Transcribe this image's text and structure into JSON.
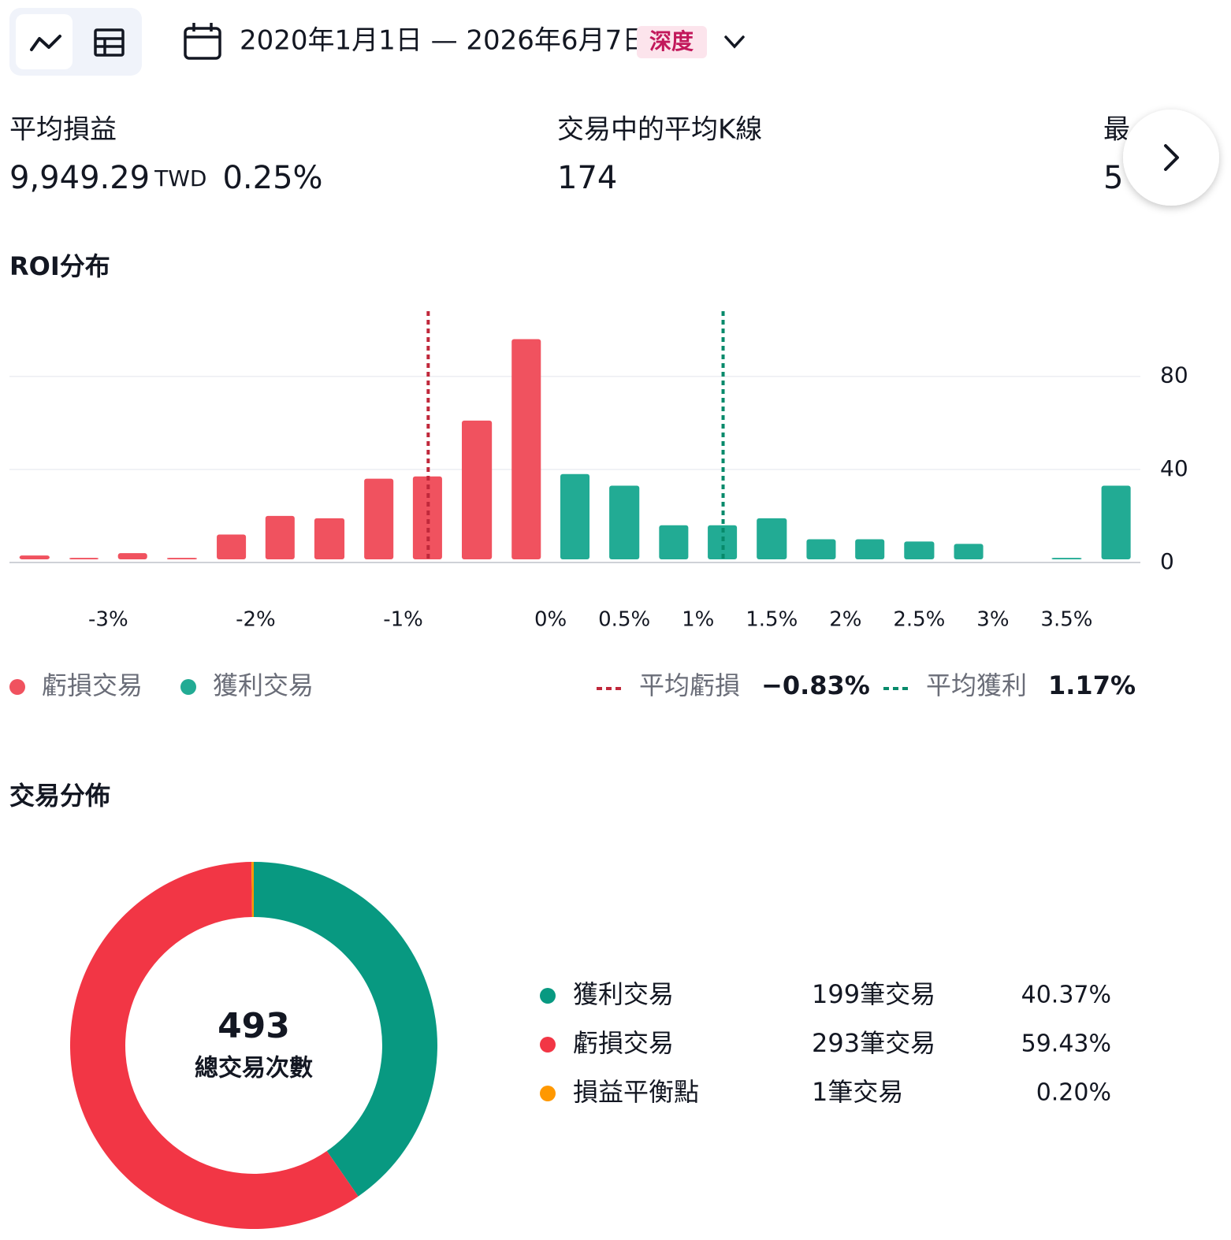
{
  "toolbar": {
    "date_range": "2020年1月1日 — 2026年6月7日",
    "badge": "深度"
  },
  "stats": [
    {
      "label": "平均損益",
      "value": "9,949.29",
      "unit": "TWD",
      "percent": "0.25%"
    },
    {
      "label": "交易中的平均K線",
      "value": "174"
    },
    {
      "label": "最",
      "value": "5"
    }
  ],
  "chart_data": [
    {
      "type": "histogram",
      "title": "ROI分布",
      "bins": [
        -3.67,
        -3.33,
        -3,
        -2.67,
        -2.33,
        -2,
        -1.67,
        -1.33,
        -1,
        -0.67,
        -0.33,
        0,
        0.33,
        0.67,
        1,
        1.33,
        1.67,
        2,
        2.33,
        2.67,
        3,
        3.33,
        3.67,
        4
      ],
      "series": [
        {
          "name": "虧損交易",
          "color": "#f0525f",
          "values": [
            3,
            2,
            4,
            2,
            12,
            20,
            19,
            36,
            37,
            61,
            96,
            null,
            null,
            null,
            null,
            null,
            null,
            null,
            null,
            null,
            null,
            null,
            null
          ]
        },
        {
          "name": "獲利交易",
          "color": "#22ab94",
          "values": [
            null,
            null,
            null,
            null,
            null,
            null,
            null,
            null,
            null,
            null,
            null,
            38,
            33,
            16,
            16,
            19,
            10,
            10,
            9,
            8,
            1,
            2,
            33
          ]
        }
      ],
      "xlim": [
        -3.67,
        4
      ],
      "xticks": [
        {
          "value": -3,
          "label": "-3%"
        },
        {
          "value": -2,
          "label": "-2%"
        },
        {
          "value": -1,
          "label": "-1%"
        },
        {
          "value": 0,
          "label": "0%"
        },
        {
          "value": 0.5,
          "label": "0.5%"
        },
        {
          "value": 1,
          "label": "1%"
        },
        {
          "value": 1.5,
          "label": "1.5%"
        },
        {
          "value": 2,
          "label": "2%"
        },
        {
          "value": 2.5,
          "label": "2.5%"
        },
        {
          "value": 3,
          "label": "3%"
        },
        {
          "value": 3.5,
          "label": "3.5%"
        }
      ],
      "ylim": [
        0,
        108
      ],
      "yticks": [
        0,
        40,
        80
      ],
      "grid": true,
      "ref_lines": [
        {
          "name": "平均虧損",
          "value": -0.83,
          "value_label": "−0.83%",
          "color": "#c0283b"
        },
        {
          "name": "平均獲利",
          "value": 1.17,
          "value_label": "1.17%",
          "color": "#078a6b"
        }
      ]
    },
    {
      "type": "donut",
      "title": "交易分佈",
      "categories": [
        "獲利交易",
        "虧損交易",
        "損益平衡點"
      ],
      "values": [
        199,
        293,
        1
      ],
      "value_labels": [
        "199筆交易",
        "293筆交易",
        "1筆交易"
      ],
      "shares": [
        40.37,
        59.43,
        0.2
      ],
      "share_labels": [
        "40.37%",
        "59.43%",
        "0.20%"
      ],
      "colors": [
        "#089981",
        "#f23645",
        "#ff9800"
      ],
      "center_value": 493,
      "center_label": "總交易次數"
    }
  ]
}
